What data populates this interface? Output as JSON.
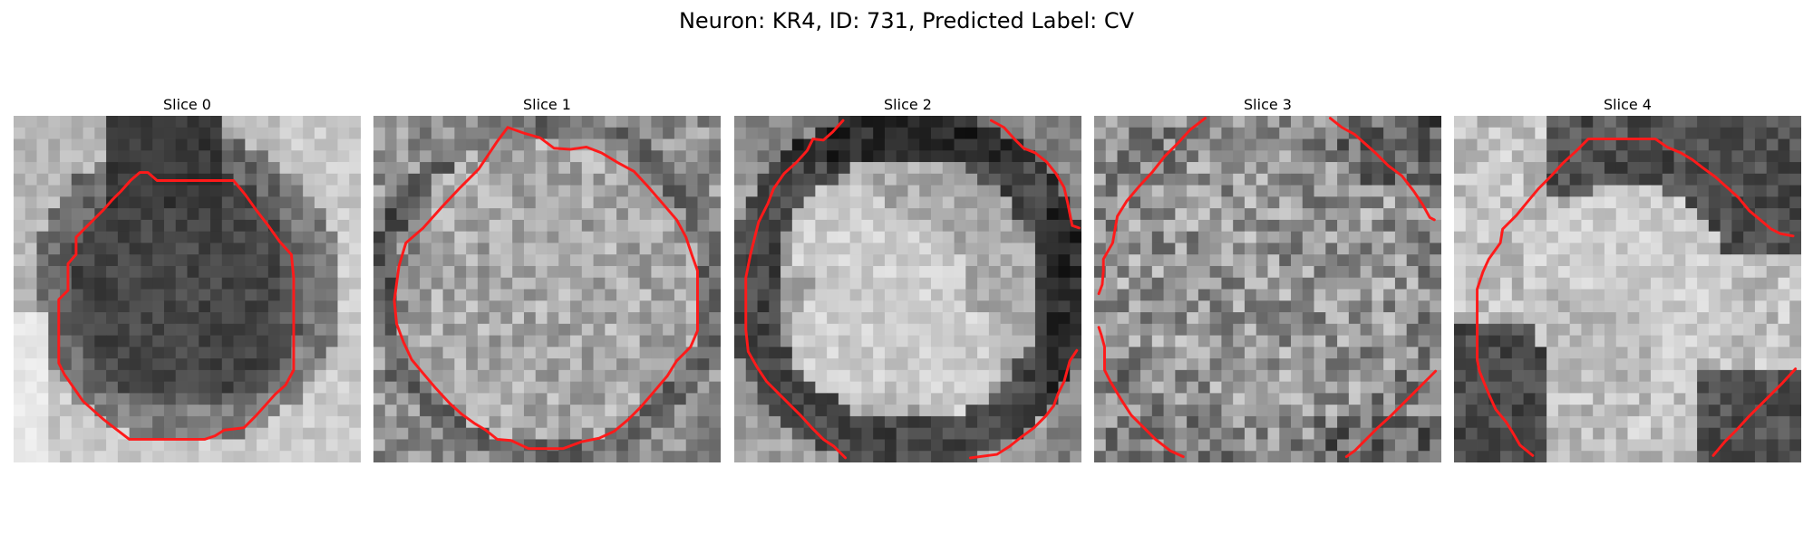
{
  "figure": {
    "title": "Neuron: KR4, ID: 731, Predicted Label: CV"
  },
  "slices": [
    {
      "title": "Slice 0",
      "image": "grayscale microscopy crop: dark neuron body centered on light background",
      "contour_color": "#ff1a1a",
      "style": "dark-center"
    },
    {
      "title": "Slice 1",
      "image": "grayscale microscopy crop: light noisy neuron interior inside red contour",
      "contour_color": "#ff1a1a",
      "style": "bright-noisy"
    },
    {
      "title": "Slice 2",
      "image": "grayscale microscopy crop: bright lobed structure with dark ring",
      "contour_color": "#ff1a1a",
      "style": "lobed-ring"
    },
    {
      "title": "Slice 3",
      "image": "grayscale microscopy crop: noisy gray field with partial red contours",
      "contour_color": "#ff1a1a",
      "style": "noisy-gray"
    },
    {
      "title": "Slice 4",
      "image": "grayscale microscopy crop: bright irregular cell with dark upper band",
      "contour_color": "#ff1a1a",
      "style": "bright-band"
    }
  ]
}
